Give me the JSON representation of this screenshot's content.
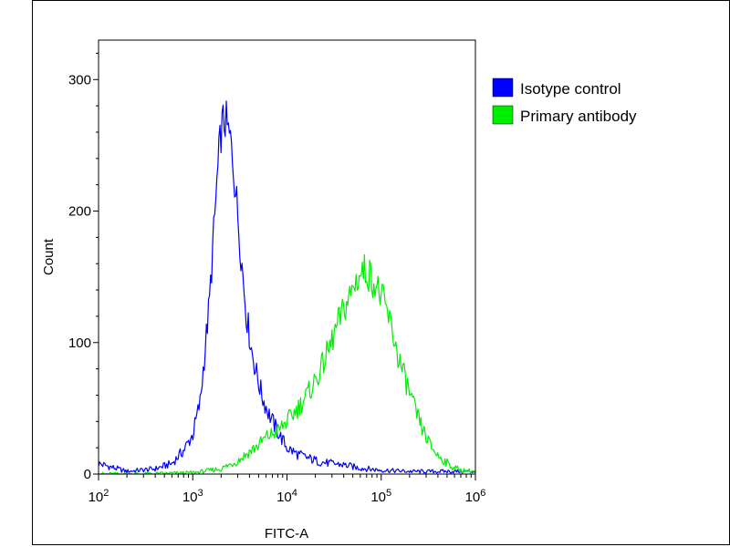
{
  "chart_data": {
    "type": "line",
    "xlabel": "FITC-A",
    "ylabel": "Count",
    "xscale": "log",
    "xlim": [
      100,
      1000000
    ],
    "ylim": [
      0,
      330
    ],
    "x_ticks": [
      {
        "value": 100,
        "base": "10",
        "exp": "2"
      },
      {
        "value": 1000,
        "base": "10",
        "exp": "3"
      },
      {
        "value": 10000,
        "base": "10",
        "exp": "4"
      },
      {
        "value": 100000,
        "base": "10",
        "exp": "5"
      },
      {
        "value": 1000000,
        "base": "10",
        "exp": "6"
      }
    ],
    "y_ticks": [
      0,
      100,
      200,
      300
    ],
    "grid": false,
    "legend_position": "top-right",
    "series": [
      {
        "name": "Isotype control",
        "color": "#0000ff",
        "x": [
          100,
          200,
          400,
          600,
          800,
          1000,
          1200,
          1500,
          1800,
          2000,
          2200,
          2400,
          2600,
          2800,
          3000,
          3300,
          3700,
          4200,
          4800,
          5500,
          6500,
          8000,
          10000,
          13000,
          17000,
          23000,
          30000,
          40000,
          55000,
          70000,
          100000,
          200000,
          400000,
          1000000
        ],
        "y": [
          8,
          2,
          4,
          8,
          18,
          30,
          55,
          130,
          220,
          262,
          270,
          258,
          248,
          222,
          198,
          162,
          122,
          95,
          75,
          58,
          45,
          32,
          20,
          15,
          12,
          9,
          8,
          7,
          5,
          4,
          3,
          2,
          2,
          2
        ]
      },
      {
        "name": "Primary antibody",
        "color": "#00ee00",
        "x": [
          100,
          300,
          1000,
          2000,
          3000,
          4000,
          5000,
          6000,
          8000,
          10000,
          13000,
          17000,
          22000,
          28000,
          35000,
          45000,
          55000,
          65000,
          75000,
          90000,
          110000,
          130000,
          150000,
          180000,
          220000,
          270000,
          330000,
          400000,
          550000,
          700000,
          1000000
        ],
        "y": [
          0,
          0,
          1,
          4,
          10,
          17,
          22,
          28,
          33,
          40,
          50,
          62,
          77,
          95,
          115,
          133,
          148,
          155,
          152,
          142,
          128,
          110,
          90,
          72,
          52,
          35,
          22,
          14,
          6,
          3,
          2
        ]
      }
    ]
  }
}
